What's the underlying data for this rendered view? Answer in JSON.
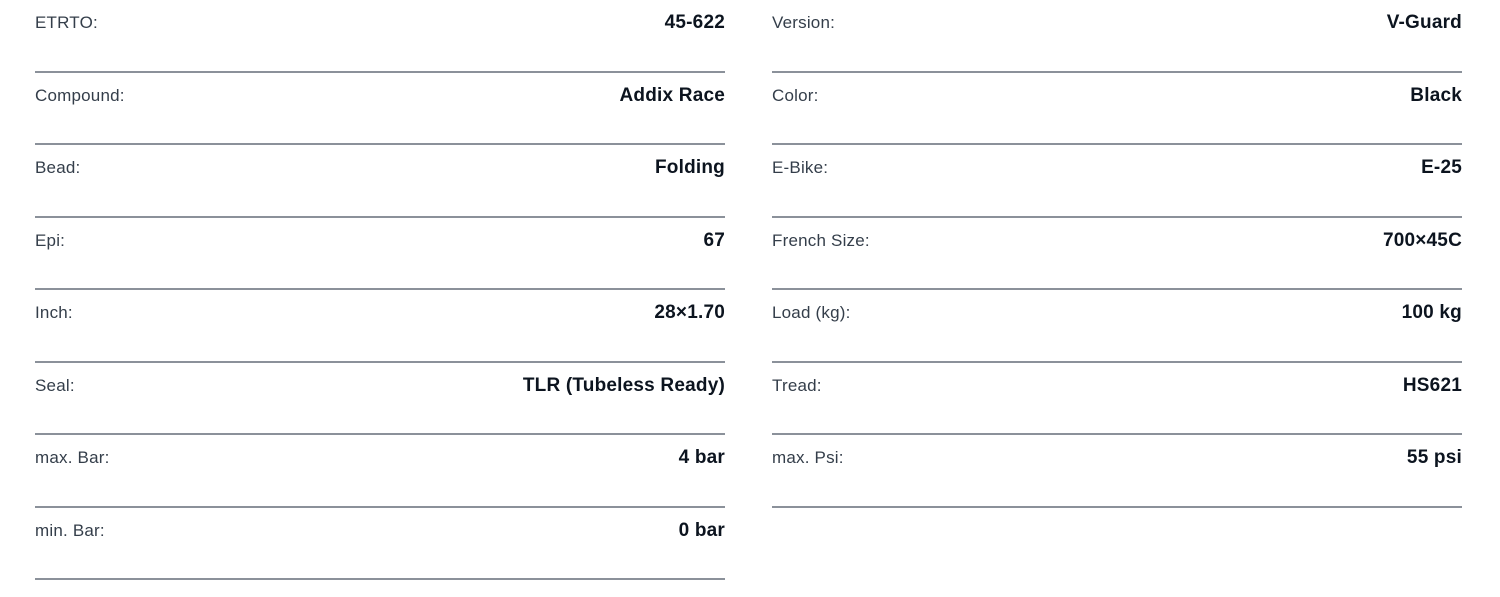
{
  "page": {
    "background_color": "#ffffff",
    "rule_color": "#8b919a",
    "label_color": "#343e4a",
    "value_color": "#0c141f"
  },
  "spec_table": {
    "left_column": [
      {
        "label": "ETRTO:",
        "value": "45-622"
      },
      {
        "label": "Compound:",
        "value": "Addix Race"
      },
      {
        "label": "Bead:",
        "value": "Folding"
      },
      {
        "label": "Epi:",
        "value": "67"
      },
      {
        "label": "Inch:",
        "value": "28×1.70"
      },
      {
        "label": "Seal:",
        "value": "TLR (Tubeless Ready)"
      },
      {
        "label": "max. Bar:",
        "value": "4 bar"
      },
      {
        "label": "min. Bar:",
        "value": "0 bar"
      }
    ],
    "right_column": [
      {
        "label": "Version:",
        "value": "V-Guard"
      },
      {
        "label": "Color:",
        "value": "Black"
      },
      {
        "label": "E-Bike:",
        "value": "E-25"
      },
      {
        "label": "French Size:",
        "value": "700×45C"
      },
      {
        "label": "Load (kg):",
        "value": "100 kg"
      },
      {
        "label": "Tread:",
        "value": "HS621"
      },
      {
        "label": "max. Psi:",
        "value": "55 psi"
      }
    ]
  }
}
